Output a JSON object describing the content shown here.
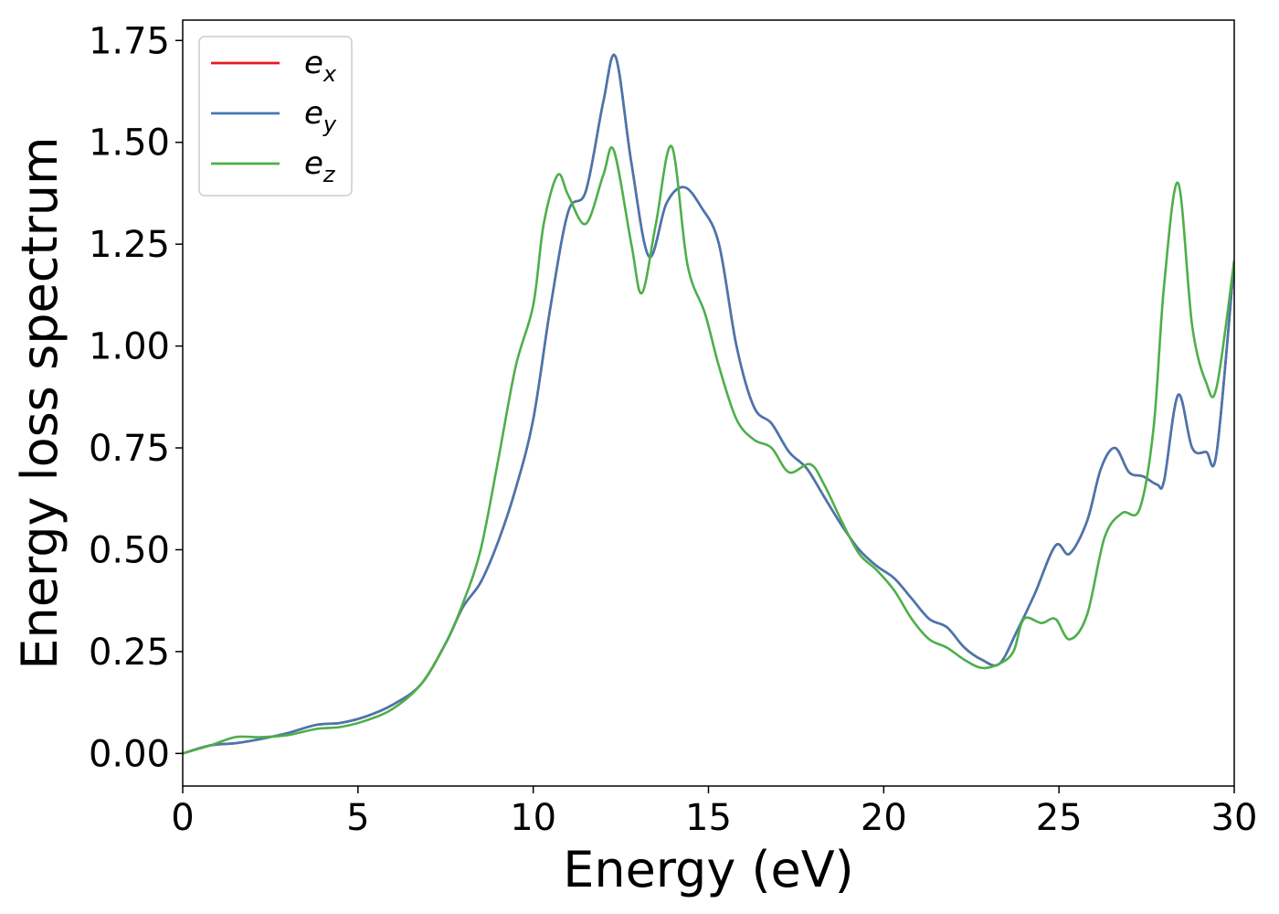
{
  "chart_data": {
    "type": "line",
    "title": "",
    "xlabel": "Energy (eV)",
    "ylabel": "Energy loss spectrum",
    "xlim": [
      0,
      30
    ],
    "ylim": [
      -0.08,
      1.8
    ],
    "xticks": [
      0,
      5,
      10,
      15,
      20,
      25,
      30
    ],
    "xtick_labels": [
      "0",
      "5",
      "10",
      "15",
      "20",
      "25",
      "30"
    ],
    "yticks": [
      0,
      0.25,
      0.5,
      0.75,
      1.0,
      1.25,
      1.5,
      1.75
    ],
    "ytick_labels": [
      "0.00",
      "0.25",
      "0.50",
      "0.75",
      "1.00",
      "1.25",
      "1.50",
      "1.75"
    ],
    "grid": false,
    "legend_position": "top-left",
    "series": [
      {
        "name": "e_x",
        "label_base": "e",
        "label_sub": "x",
        "color": "#e41a1c",
        "x": [
          0,
          0.8,
          1.5,
          2.2,
          3.0,
          3.8,
          4.5,
          5.2,
          6.0,
          6.8,
          7.5,
          8.0,
          8.5,
          9.0,
          9.5,
          10.0,
          10.5,
          11.0,
          11.5,
          12.0,
          12.35,
          12.8,
          13.3,
          13.8,
          14.3,
          14.8,
          15.3,
          15.8,
          16.3,
          16.8,
          17.3,
          17.8,
          18.3,
          18.8,
          19.3,
          19.8,
          20.3,
          20.8,
          21.3,
          21.8,
          22.3,
          22.8,
          23.3,
          23.8,
          24.3,
          24.9,
          25.3,
          25.8,
          26.2,
          26.6,
          27.0,
          27.4,
          27.8,
          28.0,
          28.4,
          28.8,
          29.2,
          29.5,
          30.0
        ],
        "y": [
          0.0,
          0.02,
          0.025,
          0.035,
          0.05,
          0.07,
          0.075,
          0.09,
          0.12,
          0.17,
          0.27,
          0.36,
          0.42,
          0.52,
          0.65,
          0.82,
          1.1,
          1.33,
          1.38,
          1.6,
          1.71,
          1.45,
          1.22,
          1.35,
          1.39,
          1.34,
          1.25,
          1.0,
          0.85,
          0.81,
          0.74,
          0.7,
          0.63,
          0.56,
          0.5,
          0.46,
          0.43,
          0.38,
          0.33,
          0.31,
          0.26,
          0.23,
          0.22,
          0.3,
          0.39,
          0.51,
          0.49,
          0.57,
          0.7,
          0.75,
          0.69,
          0.68,
          0.66,
          0.67,
          0.88,
          0.75,
          0.74,
          0.74,
          1.21
        ]
      },
      {
        "name": "e_y",
        "label_base": "e",
        "label_sub": "y",
        "color": "#4677b0",
        "x": [
          0,
          0.8,
          1.5,
          2.2,
          3.0,
          3.8,
          4.5,
          5.2,
          6.0,
          6.8,
          7.5,
          8.0,
          8.5,
          9.0,
          9.5,
          10.0,
          10.5,
          11.0,
          11.5,
          12.0,
          12.35,
          12.8,
          13.3,
          13.8,
          14.3,
          14.8,
          15.3,
          15.8,
          16.3,
          16.8,
          17.3,
          17.8,
          18.3,
          18.8,
          19.3,
          19.8,
          20.3,
          20.8,
          21.3,
          21.8,
          22.3,
          22.8,
          23.3,
          23.8,
          24.3,
          24.9,
          25.3,
          25.8,
          26.2,
          26.6,
          27.0,
          27.4,
          27.8,
          28.0,
          28.4,
          28.8,
          29.2,
          29.5,
          30.0
        ],
        "y": [
          0.0,
          0.02,
          0.025,
          0.035,
          0.05,
          0.07,
          0.075,
          0.09,
          0.12,
          0.17,
          0.27,
          0.36,
          0.42,
          0.52,
          0.65,
          0.82,
          1.1,
          1.33,
          1.38,
          1.6,
          1.71,
          1.45,
          1.22,
          1.35,
          1.39,
          1.34,
          1.25,
          1.0,
          0.85,
          0.81,
          0.74,
          0.7,
          0.63,
          0.56,
          0.5,
          0.46,
          0.43,
          0.38,
          0.33,
          0.31,
          0.26,
          0.23,
          0.22,
          0.3,
          0.39,
          0.51,
          0.49,
          0.57,
          0.7,
          0.75,
          0.69,
          0.68,
          0.66,
          0.67,
          0.88,
          0.75,
          0.74,
          0.74,
          1.21
        ]
      },
      {
        "name": "e_z",
        "label_base": "e",
        "label_sub": "z",
        "color": "#4daf4a",
        "x": [
          0,
          0.8,
          1.5,
          2.2,
          3.0,
          3.8,
          4.5,
          5.2,
          6.0,
          6.8,
          7.5,
          8.0,
          8.5,
          9.0,
          9.5,
          10.0,
          10.3,
          10.7,
          11.0,
          11.5,
          12.0,
          12.3,
          12.8,
          13.1,
          13.5,
          13.95,
          14.4,
          14.9,
          15.3,
          15.8,
          16.3,
          16.8,
          17.3,
          17.9,
          18.3,
          18.8,
          19.3,
          19.8,
          20.3,
          20.8,
          21.3,
          21.8,
          22.3,
          22.8,
          23.3,
          23.7,
          24.0,
          24.5,
          24.9,
          25.3,
          25.8,
          26.3,
          26.8,
          27.3,
          27.7,
          28.0,
          28.4,
          28.8,
          29.2,
          29.5,
          30.0
        ],
        "y": [
          0.0,
          0.02,
          0.04,
          0.04,
          0.045,
          0.06,
          0.065,
          0.08,
          0.11,
          0.17,
          0.27,
          0.37,
          0.5,
          0.72,
          0.95,
          1.1,
          1.3,
          1.42,
          1.37,
          1.3,
          1.42,
          1.48,
          1.25,
          1.13,
          1.3,
          1.49,
          1.2,
          1.08,
          0.95,
          0.82,
          0.77,
          0.75,
          0.69,
          0.71,
          0.66,
          0.57,
          0.49,
          0.45,
          0.4,
          0.33,
          0.28,
          0.26,
          0.23,
          0.21,
          0.22,
          0.25,
          0.33,
          0.32,
          0.33,
          0.28,
          0.34,
          0.53,
          0.59,
          0.6,
          0.8,
          1.15,
          1.4,
          1.05,
          0.91,
          0.9,
          1.21
        ]
      }
    ]
  }
}
